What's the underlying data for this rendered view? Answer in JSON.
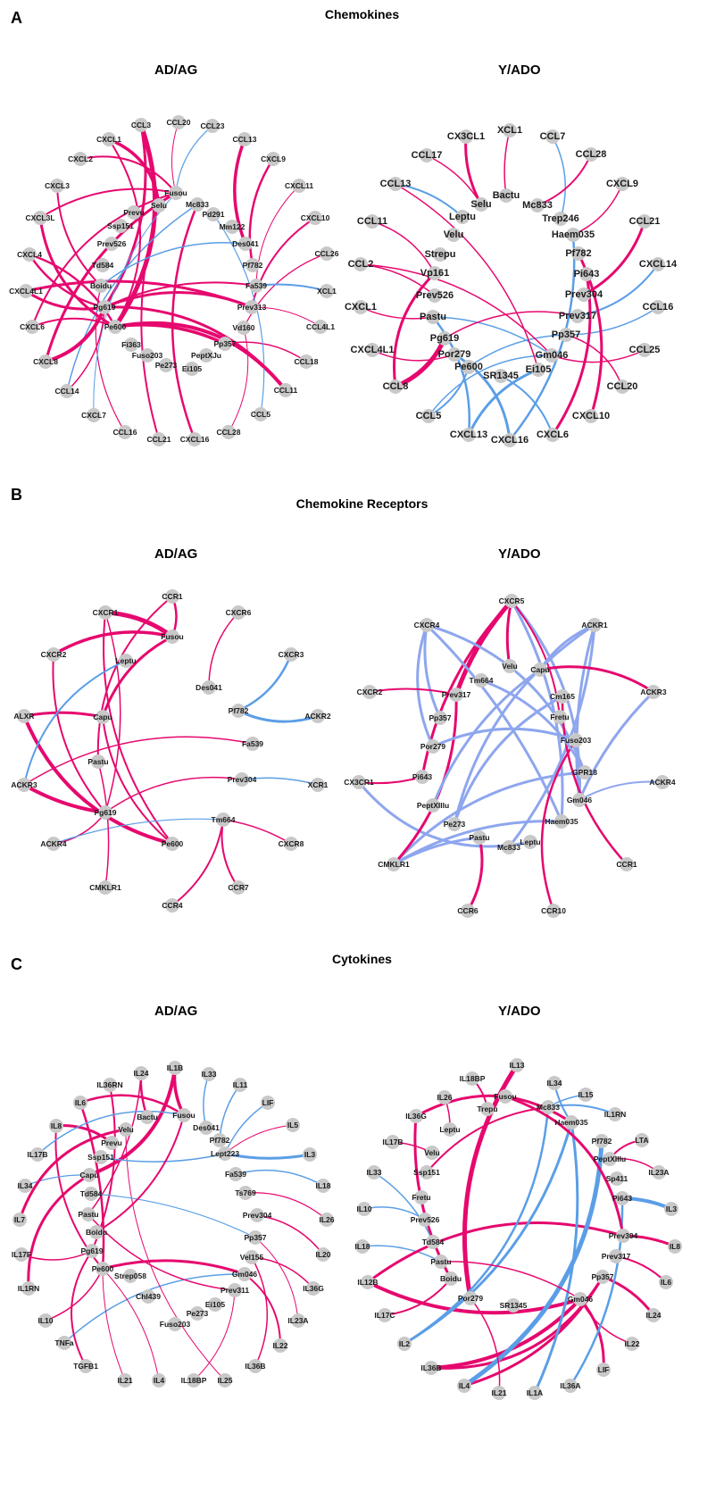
{
  "colors": {
    "pink": "#e6086e",
    "blue": "#5b9ee6",
    "lightblue": "#8fb8ee",
    "lavender": "#8ea6ee",
    "node": "#c8c8c8"
  },
  "panels": [
    {
      "letter": "A",
      "title": "Chemokines",
      "left": {
        "subtitle": "AD/AG",
        "nodes": [
          "CCL3",
          "CCL20",
          "CCL23",
          "CCL13",
          "CXCL9",
          "CXCL11",
          "CXCL10",
          "CCL26",
          "XCL1",
          "CCL4L1",
          "CCL18",
          "CCL11",
          "CCL5",
          "CCL28",
          "CXCL16",
          "CCL21",
          "CCL16",
          "CXCL7",
          "CCL14",
          "CXCL8",
          "CXCL6",
          "CXCL4L1",
          "CXCL4",
          "CXCL3L",
          "CXCL3",
          "CXCL2",
          "CXCL1",
          "Fusou",
          "Selu",
          "Mc833",
          "Pd291",
          "Prevu",
          "Ssp151",
          "Mm122",
          "Prev526",
          "Des041",
          "Pf782",
          "Td584",
          "Fa539",
          "Boidu",
          "Pg619",
          "Prev313",
          "Pe600",
          "Vd160",
          "Fi363",
          "Pp357",
          "Fuso203",
          "PeptXJu",
          "Pe273",
          "Ei105"
        ]
      },
      "right": {
        "subtitle": "Y/ADO",
        "nodes": [
          "XCL1",
          "CCL7",
          "CX3CL1",
          "CCL28",
          "CCL17",
          "CXCL9",
          "Bactu",
          "Selu",
          "Mc833",
          "CCL13",
          "Leptu",
          "Trep246",
          "CCL21",
          "Velu",
          "Haem035",
          "CCL11",
          "Strepu",
          "Pf782",
          "CXCL14",
          "CCL2",
          "Vp161",
          "Pi643",
          "Prev304",
          "CCL16",
          "Prev526",
          "Prev317",
          "CXCL1",
          "Pastu",
          "Pp357",
          "CCL25",
          "CXCL4L1",
          "Pg619",
          "Gm046",
          "Por279",
          "Pe600",
          "SR1345",
          "Ei105",
          "CCL20",
          "CCL8",
          "CCL5",
          "CXCL10",
          "CXCL13",
          "CXCL16",
          "CXCL6"
        ]
      }
    },
    {
      "letter": "B",
      "title": "Chemokine Receptors",
      "left": {
        "subtitle": "AD/AG",
        "nodes": [
          "CCR1",
          "CXCR1",
          "CXCR6",
          "CXCR2",
          "Fusou",
          "Leptu",
          "CXCR3",
          "Des041",
          "ALXR",
          "Capu",
          "Pf782",
          "ACKR2",
          "Pastu",
          "Fa539",
          "ACKR3",
          "Prev304",
          "XCR1",
          "Pg619",
          "Tm664",
          "ACKR4",
          "Pe600",
          "CXCR8",
          "CMKLR1",
          "CCR7",
          "CCR4"
        ]
      },
      "right": {
        "subtitle": "Y/ADO",
        "nodes": [
          "CXCR5",
          "CXCR4",
          "ACKR1",
          "Velu",
          "Tm664",
          "Capu",
          "CXCR2",
          "Prev317",
          "Cm165",
          "ACKR3",
          "Fretu",
          "Pp357",
          "Fuso203",
          "Por279",
          "GPR18",
          "CX3CR1",
          "Pi643",
          "ACKR4",
          "Gm046",
          "PeptXIIIu",
          "Haem035",
          "Pe273",
          "Pastu",
          "Leptu",
          "Mc833",
          "CMKLR1",
          "CCR1",
          "CCR6",
          "CCR10"
        ]
      }
    },
    {
      "letter": "C",
      "title": "Cytokines",
      "left": {
        "subtitle": "AD/AG",
        "nodes": [
          "IL1B",
          "IL24",
          "IL33",
          "IL36RN",
          "IL11",
          "IL6",
          "LIF",
          "Fusou",
          "Bactu",
          "IL5",
          "IL8",
          "Velu",
          "Des041",
          "Pf782",
          "IL17B",
          "Prevu",
          "IL3",
          "Lept223",
          "Ssp151",
          "IL34",
          "Fa539",
          "IL18",
          "Capu",
          "Ts769",
          "IL7",
          "Td584",
          "Prev304",
          "IL26",
          "Pastu",
          "Pp357",
          "IL20",
          "IL17F",
          "Boidu",
          "Vel155",
          "Pg619",
          "Gm046",
          "IL36G",
          "IL1RN",
          "Pe600",
          "Prev311",
          "Strep058",
          "IL23A",
          "IL10",
          "Chl439",
          "Ei105",
          "Pe273",
          "Fuso203",
          "TNFa",
          "IL22",
          "TGFB1",
          "IL36B",
          "IL4",
          "IL21",
          "IL18BP",
          "IL25"
        ]
      },
      "right": {
        "subtitle": "Y/ADO",
        "nodes": [
          "IL13",
          "IL18BP",
          "IL34",
          "IL15",
          "IL26",
          "Fusou",
          "Trepu",
          "IL1RN",
          "IL36G",
          "Mc833",
          "Haem035",
          "LTA",
          "IL17B",
          "Leptu",
          "Pf782",
          "IL23A",
          "IL33",
          "Velu",
          "PeptXIIIu",
          "Ssp151",
          "Sp411",
          "IL3",
          "IL10",
          "Fretu",
          "Pi643",
          "IL8",
          "IL18",
          "Prev526",
          "Prev304",
          "Td584",
          "IL6",
          "Prev317",
          "IL12B",
          "Pastu",
          "Pp357",
          "IL24",
          "IL17C",
          "Boidu",
          "Gm046",
          "IL22",
          "Por279",
          "SR1345",
          "LIF",
          "IL2",
          "IL36B",
          "IL4",
          "IL21",
          "IL1A",
          "IL36A"
        ]
      }
    }
  ]
}
